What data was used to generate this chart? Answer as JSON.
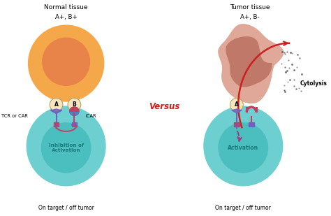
{
  "bg_color": "#ffffff",
  "left_panel": {
    "title_line1": "Normal tissue",
    "title_line2": "A+, B+",
    "normal_cell_color": "#F5A84A",
    "normal_cell_inner_color": "#E8834A",
    "t_cell_color": "#6DCFCF",
    "t_cell_inner_color": "#4BBFBF",
    "receptor_color": "#F5E6C0",
    "tcr_color": "#7060C0",
    "icar_stem_color": "#C04060",
    "icar_half_color": "#5080C0",
    "node_color": "#C04060",
    "label_tcr": "TCR or CAR",
    "label_icar": "iCAR",
    "label_inhibition": "Inhibition of\nActivation",
    "footer": "On target / off tumor"
  },
  "right_panel": {
    "title_line1": "Tumor tissue",
    "title_line2": "A+, B-",
    "tumor_color": "#E0A898",
    "tumor_inner_color": "#C07868",
    "t_cell_color": "#6DCFCF",
    "t_cell_inner_color": "#4BBFBF",
    "receptor_color": "#F5E6C0",
    "tcr_color": "#7060C0",
    "icar_color": "#C04060",
    "node_color": "#C04060",
    "activation_arrow_color": "#A03080",
    "cytolysis_arrow_color": "#CC2020",
    "label_activation": "Activation",
    "label_cytolysis": "Cytolysis",
    "footer": "On target / off tumor"
  },
  "versus_text": "Versus",
  "versus_color": "#CC2020"
}
